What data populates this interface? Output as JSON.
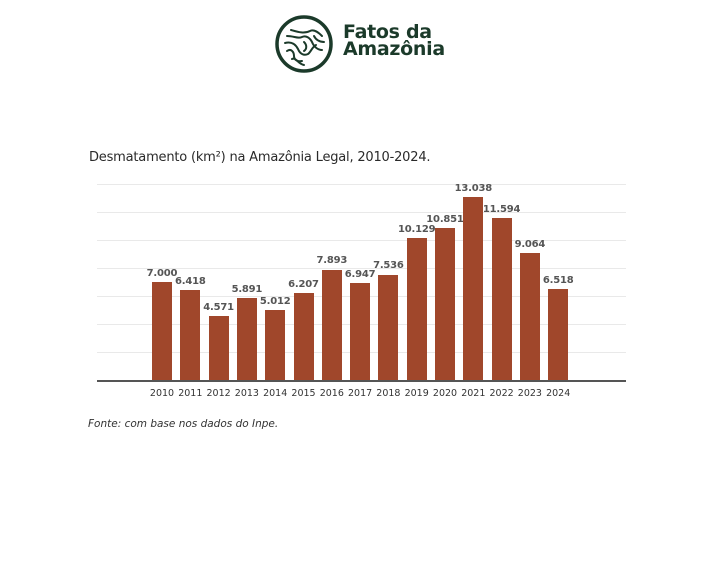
{
  "header": {
    "brand_line1": "Fatos da",
    "brand_line2": "Amazônia",
    "brand_color": "#1b3a2a"
  },
  "chart": {
    "title": "Desmatamento (km²) na Amazônia Legal, 2010-2024.",
    "source": "Fonte: com base nos dados do Inpe."
  },
  "chart_data": {
    "type": "bar",
    "title": "Desmatamento (km²) na Amazônia Legal, 2010-2024.",
    "xlabel": "",
    "ylabel": "",
    "categories": [
      "2010",
      "2011",
      "2012",
      "2013",
      "2014",
      "2015",
      "2016",
      "2017",
      "2018",
      "2019",
      "2020",
      "2021",
      "2022",
      "2023",
      "2024"
    ],
    "values": [
      7000,
      6418,
      4571,
      5891,
      5012,
      6207,
      7893,
      6947,
      7536,
      10129,
      10851,
      13038,
      11594,
      9064,
      6518
    ],
    "value_labels": [
      "7.000",
      "6.418",
      "4.571",
      "5.891",
      "5.012",
      "6.207",
      "7.893",
      "6.947",
      "7.536",
      "10.129",
      "10.851",
      "13.038",
      "11.594",
      "9.064",
      "6.518"
    ],
    "ylim": [
      0,
      14000
    ],
    "grid": true,
    "gridline_step": 2000,
    "y_tick_labels_shown": false,
    "legend": null,
    "bar_color": "#a0472b",
    "source": "Fonte: com base nos dados do Inpe."
  }
}
